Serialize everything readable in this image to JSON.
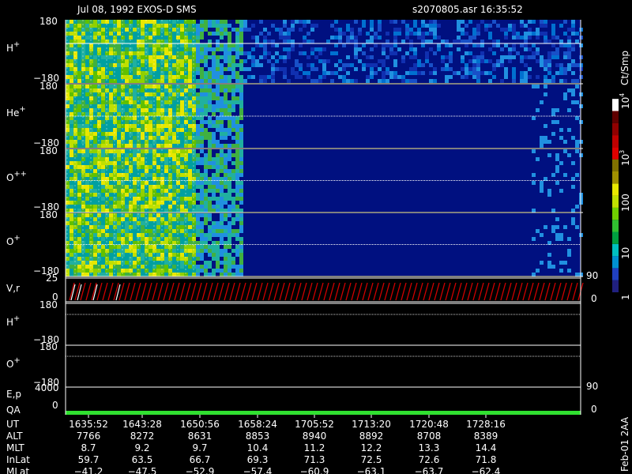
{
  "header": {
    "title": "Jul 08, 1992   EXOS-D SMS",
    "file": "s2070805.asr  16:35:52"
  },
  "panels": [
    {
      "label": {
        "base": "H",
        "sup": "+"
      },
      "top": "180",
      "bottom": "−180"
    },
    {
      "label": {
        "base": "He",
        "sup": "+"
      },
      "top": "180",
      "bottom": "−180"
    },
    {
      "label": {
        "base": "O",
        "sup": "++"
      },
      "top": "180",
      "bottom": "−180"
    },
    {
      "label": {
        "base": "O",
        "sup": "+"
      },
      "top": "180",
      "bottom": "−180"
    }
  ],
  "velocity_panel": {
    "label": "V,r",
    "top": "25",
    "bottom": "0",
    "right_top": "90",
    "right_bottom": "0"
  },
  "pitch_panels": [
    {
      "label": {
        "base": "H",
        "sup": "+"
      },
      "top": "180",
      "bottom": "−180"
    },
    {
      "label": {
        "base": "O",
        "sup": "+"
      },
      "top": "180",
      "bottom": "−180"
    }
  ],
  "energy_panel": {
    "label": "E,p",
    "label2": "QA",
    "top": "4000",
    "bottom": "0",
    "right_top": "90",
    "right_bottom": "0"
  },
  "colorbar": {
    "unit": "Ct/Smp",
    "labels": [
      {
        "base": "10",
        "sup": "4"
      },
      {
        "base": "10",
        "sup": "3"
      },
      {
        "base": "100",
        "sup": ""
      },
      {
        "base": "10",
        "sup": ""
      },
      {
        "base": "1",
        "sup": ""
      }
    ]
  },
  "footer_note": "Feb-01 2AA",
  "table": {
    "rows": [
      {
        "name": "UT",
        "values": [
          "1635:52",
          "1643:28",
          "1650:56",
          "1658:24",
          "1705:52",
          "1713:20",
          "1720:48",
          "1728:16"
        ]
      },
      {
        "name": "ALT",
        "values": [
          "7766",
          "8272",
          "8631",
          "8853",
          "8940",
          "8892",
          "8708",
          "8389"
        ]
      },
      {
        "name": "MLT",
        "values": [
          "8.7",
          "9.2",
          "9.7",
          "10.4",
          "11.2",
          "12.2",
          "13.3",
          "14.4"
        ]
      },
      {
        "name": "InLat",
        "values": [
          "59.7",
          "63.5",
          "66.7",
          "69.3",
          "71.3",
          "72.5",
          "72.6",
          "71.8"
        ]
      },
      {
        "name": "MLat",
        "values": [
          "−41.2",
          "−47.5",
          "−52.9",
          "−57.4",
          "−60.9",
          "−63.1",
          "−63.7",
          "−62.4"
        ]
      }
    ]
  }
}
